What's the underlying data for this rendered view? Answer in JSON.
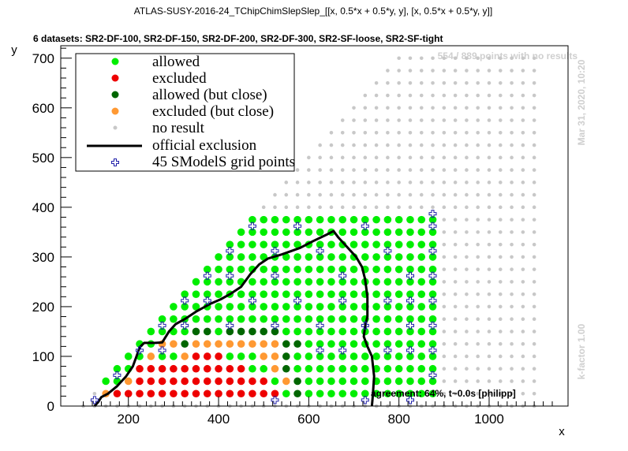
{
  "title": "ATLAS-SUSY-2016-24_TChipChimSlepSlep_[[x, 0.5*x + 0.5*y, y], [x, 0.5*x + 0.5*y, y]]",
  "subtitle": "6 datasets: SR2-DF-100, SR2-DF-150, SR2-DF-200, SR2-DF-300, SR2-SF-loose, SR2-SF-tight",
  "no_results_text": "554 / 889 points with no results",
  "timestamp": "Mar 31, 2020, 10:20",
  "kfactor": "k-factor 1.00",
  "agreement": "agreement: 64%, t~0.0s [philipp]",
  "colors": {
    "allowed": "#00ee00",
    "excluded": "#ee0000",
    "allowed_close": "#006600",
    "excluded_close": "#ff9933",
    "no_result": "#c8c8c8",
    "grid_point": "#2020aa",
    "exclusion_line": "#000000"
  },
  "legend": {
    "allowed": "allowed",
    "excluded": "excluded",
    "allowed_close": "allowed (but close)",
    "excluded_close": "excluded (but close)",
    "no_result": "no result",
    "official": "official exclusion",
    "grid": "45 SModelS grid points"
  },
  "chart_data": {
    "type": "scatter",
    "xlabel": "x",
    "ylabel": "y",
    "xlim": [
      50,
      1175
    ],
    "ylim": [
      0,
      725
    ],
    "xticks": [
      200,
      400,
      600,
      800,
      1000
    ],
    "yticks": [
      0,
      100,
      200,
      300,
      400,
      500,
      600,
      700
    ],
    "legend_position": "top-left",
    "rules": {
      "grey_lattice": {
        "x_start": 100,
        "x_end": 1100,
        "x_step": 25,
        "y_start": 0,
        "y_step": 25,
        "y_max_offset": -100
      },
      "colored_x_range": [
        150,
        875
      ],
      "colored_y_max": 375,
      "excluded_boundary": [
        [
          150,
          25
        ],
        [
          200,
          50
        ],
        [
          225,
          75
        ],
        [
          325,
          100
        ],
        [
          400,
          100
        ],
        [
          450,
          75
        ],
        [
          500,
          50
        ],
        [
          525,
          25
        ],
        [
          550,
          0
        ]
      ],
      "close_points": {
        "excluded_close": [
          [
            150,
            25
          ],
          [
            200,
            50
          ],
          [
            250,
            100
          ],
          [
            275,
            125
          ],
          [
            300,
            125
          ],
          [
            325,
            100
          ],
          [
            350,
            125
          ],
          [
            375,
            125
          ],
          [
            400,
            125
          ],
          [
            425,
            125
          ],
          [
            450,
            125
          ],
          [
            475,
            125
          ],
          [
            500,
            125
          ],
          [
            525,
            125
          ],
          [
            500,
            100
          ],
          [
            525,
            100
          ],
          [
            525,
            75
          ],
          [
            550,
            50
          ]
        ],
        "allowed_close": [
          [
            325,
            125
          ],
          [
            350,
            150
          ],
          [
            375,
            150
          ],
          [
            425,
            150
          ],
          [
            450,
            150
          ],
          [
            475,
            150
          ],
          [
            500,
            150
          ],
          [
            525,
            150
          ],
          [
            550,
            100
          ],
          [
            575,
            125
          ],
          [
            575,
            50
          ],
          [
            575,
            25
          ],
          [
            575,
            0
          ],
          [
            600,
            0
          ],
          [
            550,
            125
          ],
          [
            550,
            75
          ]
        ]
      }
    },
    "grid_points": [
      [
        125,
        12
      ],
      [
        175,
        62
      ],
      [
        225,
        112
      ],
      [
        275,
        112
      ],
      [
        275,
        162
      ],
      [
        325,
        212
      ],
      [
        375,
        212
      ],
      [
        375,
        262
      ],
      [
        425,
        312
      ],
      [
        425,
        262
      ],
      [
        475,
        362
      ],
      [
        525,
        312
      ],
      [
        525,
        262
      ],
      [
        575,
        362
      ],
      [
        625,
        312
      ],
      [
        675,
        262
      ],
      [
        725,
        362
      ],
      [
        775,
        312
      ],
      [
        825,
        262
      ],
      [
        875,
        387
      ],
      [
        875,
        362
      ],
      [
        875,
        312
      ],
      [
        875,
        262
      ],
      [
        875,
        212
      ],
      [
        875,
        162
      ],
      [
        875,
        112
      ],
      [
        875,
        62
      ],
      [
        825,
        212
      ],
      [
        825,
        162
      ],
      [
        825,
        112
      ],
      [
        825,
        12
      ],
      [
        775,
        212
      ],
      [
        725,
        162
      ],
      [
        675,
        212
      ],
      [
        675,
        112
      ],
      [
        625,
        162
      ],
      [
        575,
        212
      ],
      [
        525,
        162
      ],
      [
        525,
        12
      ],
      [
        475,
        212
      ],
      [
        425,
        162
      ],
      [
        325,
        162
      ],
      [
        725,
        12
      ],
      [
        625,
        112
      ],
      [
        775,
        112
      ]
    ],
    "exclusion_line": [
      [
        125,
        0
      ],
      [
        133,
        8
      ],
      [
        140,
        18
      ],
      [
        155,
        25
      ],
      [
        175,
        40
      ],
      [
        195,
        60
      ],
      [
        210,
        80
      ],
      [
        218,
        100
      ],
      [
        225,
        118
      ],
      [
        235,
        127
      ],
      [
        260,
        127
      ],
      [
        275,
        128
      ],
      [
        290,
        150
      ],
      [
        305,
        165
      ],
      [
        325,
        175
      ],
      [
        350,
        190
      ],
      [
        380,
        205
      ],
      [
        405,
        215
      ],
      [
        425,
        225
      ],
      [
        450,
        240
      ],
      [
        470,
        265
      ],
      [
        490,
        285
      ],
      [
        510,
        297
      ],
      [
        540,
        305
      ],
      [
        580,
        318
      ],
      [
        610,
        332
      ],
      [
        640,
        345
      ],
      [
        655,
        352
      ],
      [
        665,
        340
      ],
      [
        680,
        325
      ],
      [
        705,
        300
      ],
      [
        718,
        280
      ],
      [
        725,
        255
      ],
      [
        730,
        220
      ],
      [
        730,
        180
      ],
      [
        725,
        160
      ],
      [
        722,
        140
      ],
      [
        730,
        120
      ],
      [
        740,
        100
      ],
      [
        745,
        60
      ],
      [
        742,
        20
      ],
      [
        740,
        0
      ]
    ]
  }
}
